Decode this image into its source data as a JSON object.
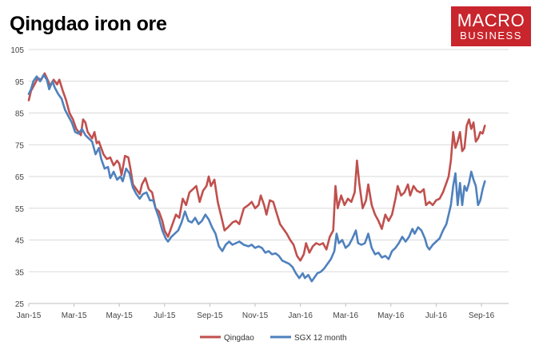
{
  "chart_data": {
    "type": "line",
    "title": "Qingdao iron ore",
    "xlabel": "",
    "ylabel": "",
    "ylim": [
      25,
      105
    ],
    "yticks": [
      25,
      35,
      45,
      55,
      65,
      75,
      85,
      95,
      105
    ],
    "x_domain": [
      0,
      21.2
    ],
    "xticks": [
      {
        "label": "Jan-15",
        "at": 0
      },
      {
        "label": "Mar-15",
        "at": 2
      },
      {
        "label": "May-15",
        "at": 4
      },
      {
        "label": "Jul-15",
        "at": 6
      },
      {
        "label": "Sep-15",
        "at": 8
      },
      {
        "label": "Nov-15",
        "at": 10
      },
      {
        "label": "Jan-16",
        "at": 12
      },
      {
        "label": "Mar-16",
        "at": 14
      },
      {
        "label": "May-16",
        "at": 16
      },
      {
        "label": "Jul-16",
        "at": 18
      },
      {
        "label": "Sep-16",
        "at": 20
      }
    ],
    "grid": true,
    "legend_position": "bottom",
    "series": [
      {
        "name": "Qingdao",
        "color": "#c0504d",
        "points": [
          [
            0.0,
            89
          ],
          [
            0.1,
            92
          ],
          [
            0.25,
            94
          ],
          [
            0.4,
            96
          ],
          [
            0.55,
            95.5
          ],
          [
            0.7,
            97.5
          ],
          [
            0.8,
            96
          ],
          [
            0.95,
            93.5
          ],
          [
            1.1,
            95.5
          ],
          [
            1.25,
            94
          ],
          [
            1.35,
            95.5
          ],
          [
            1.5,
            92
          ],
          [
            1.65,
            89
          ],
          [
            1.8,
            85
          ],
          [
            1.95,
            83
          ],
          [
            2.1,
            80
          ],
          [
            2.2,
            79
          ],
          [
            2.3,
            78
          ],
          [
            2.4,
            83
          ],
          [
            2.5,
            82
          ],
          [
            2.6,
            79
          ],
          [
            2.8,
            77
          ],
          [
            2.9,
            79
          ],
          [
            3.0,
            75.5
          ],
          [
            3.1,
            76
          ],
          [
            3.3,
            72
          ],
          [
            3.45,
            70.5
          ],
          [
            3.6,
            71
          ],
          [
            3.75,
            68.5
          ],
          [
            3.9,
            70
          ],
          [
            4.0,
            69
          ],
          [
            4.1,
            65.5
          ],
          [
            4.25,
            71.5
          ],
          [
            4.4,
            71
          ],
          [
            4.5,
            67
          ],
          [
            4.6,
            62.5
          ],
          [
            4.75,
            61
          ],
          [
            4.9,
            59.5
          ],
          [
            5.0,
            62.5
          ],
          [
            5.15,
            64.5
          ],
          [
            5.3,
            61
          ],
          [
            5.45,
            60
          ],
          [
            5.6,
            55
          ],
          [
            5.75,
            54
          ],
          [
            5.9,
            51
          ],
          [
            6.0,
            48
          ],
          [
            6.15,
            46
          ],
          [
            6.3,
            49
          ],
          [
            6.5,
            53
          ],
          [
            6.65,
            52
          ],
          [
            6.8,
            58
          ],
          [
            6.95,
            56
          ],
          [
            7.1,
            60
          ],
          [
            7.25,
            61
          ],
          [
            7.4,
            62
          ],
          [
            7.55,
            57
          ],
          [
            7.7,
            60.5
          ],
          [
            7.85,
            62
          ],
          [
            7.95,
            65
          ],
          [
            8.05,
            62
          ],
          [
            8.2,
            64
          ],
          [
            8.35,
            57
          ],
          [
            8.5,
            52.5
          ],
          [
            8.65,
            48
          ],
          [
            8.8,
            49
          ],
          [
            9.0,
            50.5
          ],
          [
            9.15,
            51
          ],
          [
            9.3,
            50
          ],
          [
            9.5,
            55
          ],
          [
            9.7,
            56
          ],
          [
            9.85,
            57
          ],
          [
            10.0,
            55
          ],
          [
            10.15,
            56
          ],
          [
            10.25,
            59
          ],
          [
            10.4,
            56
          ],
          [
            10.5,
            53
          ],
          [
            10.65,
            57.5
          ],
          [
            10.8,
            57
          ],
          [
            10.95,
            53.5
          ],
          [
            11.1,
            50
          ],
          [
            11.25,
            48.5
          ],
          [
            11.4,
            47
          ],
          [
            11.55,
            45
          ],
          [
            11.7,
            43.5
          ],
          [
            11.85,
            40
          ],
          [
            12.0,
            38.5
          ],
          [
            12.15,
            40.5
          ],
          [
            12.25,
            44
          ],
          [
            12.4,
            41
          ],
          [
            12.55,
            43
          ],
          [
            12.7,
            44
          ],
          [
            12.85,
            43.5
          ],
          [
            13.0,
            44
          ],
          [
            13.15,
            42
          ],
          [
            13.3,
            46
          ],
          [
            13.45,
            48
          ],
          [
            13.55,
            62
          ],
          [
            13.65,
            55
          ],
          [
            13.8,
            59
          ],
          [
            13.95,
            56
          ],
          [
            14.1,
            58
          ],
          [
            14.25,
            57
          ],
          [
            14.4,
            60
          ],
          [
            14.5,
            70
          ],
          [
            14.6,
            63
          ],
          [
            14.75,
            55
          ],
          [
            14.9,
            57.5
          ],
          [
            15.0,
            62.5
          ],
          [
            15.15,
            56
          ],
          [
            15.3,
            53
          ],
          [
            15.45,
            51
          ],
          [
            15.6,
            48.5
          ],
          [
            15.75,
            53
          ],
          [
            15.9,
            51
          ],
          [
            16.05,
            53
          ],
          [
            16.2,
            58
          ],
          [
            16.3,
            62
          ],
          [
            16.45,
            59
          ],
          [
            16.6,
            60
          ],
          [
            16.75,
            62.5
          ],
          [
            16.85,
            59
          ],
          [
            17.0,
            62
          ],
          [
            17.15,
            60.5
          ],
          [
            17.3,
            60
          ],
          [
            17.45,
            61
          ],
          [
            17.55,
            56
          ],
          [
            17.7,
            57
          ],
          [
            17.85,
            56
          ],
          [
            18.0,
            57.5
          ],
          [
            18.15,
            58
          ],
          [
            18.3,
            60
          ],
          [
            18.45,
            63
          ],
          [
            18.55,
            65
          ],
          [
            18.65,
            70
          ],
          [
            18.75,
            79
          ],
          [
            18.85,
            74
          ],
          [
            18.95,
            76
          ],
          [
            19.05,
            79
          ],
          [
            19.15,
            73
          ],
          [
            19.25,
            74
          ],
          [
            19.35,
            81
          ],
          [
            19.45,
            83
          ],
          [
            19.55,
            80
          ],
          [
            19.65,
            82
          ],
          [
            19.75,
            76
          ],
          [
            19.85,
            77
          ],
          [
            19.95,
            79
          ],
          [
            20.05,
            78.5
          ],
          [
            20.15,
            81
          ]
        ]
      },
      {
        "name": "SGX 12 month",
        "color": "#4f81bd",
        "points": [
          [
            0.0,
            91
          ],
          [
            0.1,
            92.5
          ],
          [
            0.2,
            95
          ],
          [
            0.35,
            96.5
          ],
          [
            0.5,
            95
          ],
          [
            0.65,
            97
          ],
          [
            0.8,
            95.5
          ],
          [
            0.9,
            92.5
          ],
          [
            1.05,
            95
          ],
          [
            1.15,
            93
          ],
          [
            1.3,
            91
          ],
          [
            1.45,
            89.5
          ],
          [
            1.6,
            86
          ],
          [
            1.75,
            84
          ],
          [
            1.9,
            82
          ],
          [
            2.05,
            79
          ],
          [
            2.2,
            78.5
          ],
          [
            2.35,
            80
          ],
          [
            2.5,
            78
          ],
          [
            2.65,
            77
          ],
          [
            2.8,
            76
          ],
          [
            2.95,
            72
          ],
          [
            3.1,
            74
          ],
          [
            3.2,
            70.5
          ],
          [
            3.35,
            67.5
          ],
          [
            3.5,
            68
          ],
          [
            3.6,
            64.5
          ],
          [
            3.75,
            66.5
          ],
          [
            3.9,
            64
          ],
          [
            4.05,
            65
          ],
          [
            4.15,
            63.5
          ],
          [
            4.3,
            67.5
          ],
          [
            4.45,
            66
          ],
          [
            4.6,
            61.5
          ],
          [
            4.75,
            59.5
          ],
          [
            4.9,
            58
          ],
          [
            5.05,
            59.5
          ],
          [
            5.2,
            60
          ],
          [
            5.35,
            57.5
          ],
          [
            5.5,
            57.5
          ],
          [
            5.6,
            55
          ],
          [
            5.75,
            52
          ],
          [
            5.9,
            48
          ],
          [
            6.05,
            45.5
          ],
          [
            6.15,
            44.5
          ],
          [
            6.3,
            46
          ],
          [
            6.45,
            47
          ],
          [
            6.6,
            48
          ],
          [
            6.75,
            50.5
          ],
          [
            6.9,
            54
          ],
          [
            7.05,
            51
          ],
          [
            7.2,
            50.5
          ],
          [
            7.35,
            52
          ],
          [
            7.5,
            50
          ],
          [
            7.65,
            51
          ],
          [
            7.8,
            53
          ],
          [
            7.95,
            51.5
          ],
          [
            8.1,
            49
          ],
          [
            8.25,
            47
          ],
          [
            8.4,
            43
          ],
          [
            8.55,
            41.5
          ],
          [
            8.7,
            43.5
          ],
          [
            8.85,
            44.5
          ],
          [
            9.0,
            43.5
          ],
          [
            9.15,
            44
          ],
          [
            9.3,
            44.5
          ],
          [
            9.5,
            43.5
          ],
          [
            9.7,
            43
          ],
          [
            9.85,
            43.5
          ],
          [
            10.0,
            42.5
          ],
          [
            10.15,
            43
          ],
          [
            10.3,
            42.5
          ],
          [
            10.45,
            41
          ],
          [
            10.6,
            41.5
          ],
          [
            10.75,
            40.5
          ],
          [
            10.9,
            40.8
          ],
          [
            11.05,
            40
          ],
          [
            11.2,
            38.5
          ],
          [
            11.35,
            38
          ],
          [
            11.5,
            37.5
          ],
          [
            11.65,
            36.5
          ],
          [
            11.8,
            34.5
          ],
          [
            11.95,
            33
          ],
          [
            12.1,
            34.5
          ],
          [
            12.2,
            33
          ],
          [
            12.35,
            34
          ],
          [
            12.5,
            32
          ],
          [
            12.6,
            33
          ],
          [
            12.75,
            34.5
          ],
          [
            12.9,
            35
          ],
          [
            13.05,
            36
          ],
          [
            13.2,
            37.5
          ],
          [
            13.35,
            39
          ],
          [
            13.5,
            41.5
          ],
          [
            13.6,
            47
          ],
          [
            13.7,
            44
          ],
          [
            13.85,
            45
          ],
          [
            14.0,
            42.5
          ],
          [
            14.15,
            43.5
          ],
          [
            14.3,
            45.5
          ],
          [
            14.45,
            48
          ],
          [
            14.55,
            44
          ],
          [
            14.7,
            43.5
          ],
          [
            14.85,
            44
          ],
          [
            15.0,
            47
          ],
          [
            15.15,
            42.5
          ],
          [
            15.3,
            40.5
          ],
          [
            15.45,
            41
          ],
          [
            15.6,
            39.5
          ],
          [
            15.75,
            40
          ],
          [
            15.9,
            39
          ],
          [
            16.05,
            41.5
          ],
          [
            16.2,
            42.5
          ],
          [
            16.35,
            44
          ],
          [
            16.5,
            46
          ],
          [
            16.65,
            44.5
          ],
          [
            16.8,
            46
          ],
          [
            16.95,
            48.5
          ],
          [
            17.05,
            47
          ],
          [
            17.2,
            49
          ],
          [
            17.35,
            48
          ],
          [
            17.5,
            45.5
          ],
          [
            17.6,
            43
          ],
          [
            17.7,
            42
          ],
          [
            17.85,
            43.5
          ],
          [
            18.0,
            44.5
          ],
          [
            18.15,
            45.5
          ],
          [
            18.3,
            48
          ],
          [
            18.45,
            50
          ],
          [
            18.55,
            53
          ],
          [
            18.65,
            56
          ],
          [
            18.75,
            62
          ],
          [
            18.85,
            66
          ],
          [
            18.95,
            56
          ],
          [
            19.05,
            63
          ],
          [
            19.15,
            56
          ],
          [
            19.25,
            62
          ],
          [
            19.35,
            60.5
          ],
          [
            19.45,
            63
          ],
          [
            19.55,
            66.5
          ],
          [
            19.65,
            64
          ],
          [
            19.75,
            62
          ],
          [
            19.85,
            56
          ],
          [
            19.95,
            57.5
          ],
          [
            20.05,
            61
          ],
          [
            20.15,
            63.5
          ]
        ]
      }
    ]
  },
  "branding": {
    "line1": "MACRO",
    "line2": "BUSINESS",
    "color": "#c9252c"
  }
}
